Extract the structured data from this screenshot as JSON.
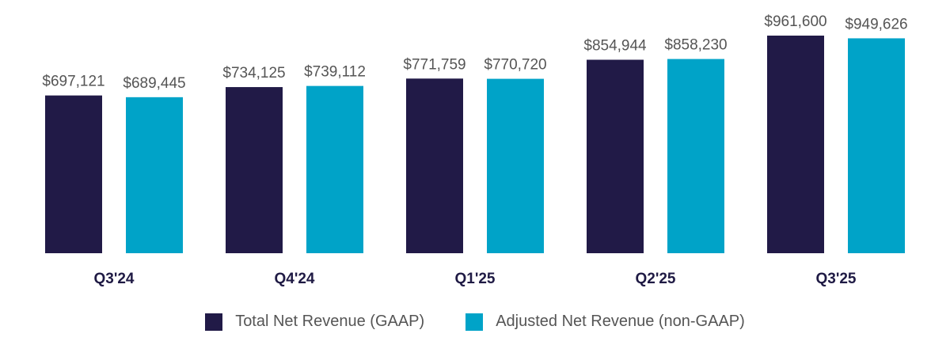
{
  "chart_data": {
    "type": "bar",
    "categories": [
      "Q3'24",
      "Q4'24",
      "Q1'25",
      "Q2'25",
      "Q3'25"
    ],
    "series": [
      {
        "name": "Total Net Revenue (GAAP)",
        "color": "#211a47",
        "values": [
          697121,
          734125,
          771759,
          854944,
          961600
        ],
        "labels": [
          "$697,121",
          "$734,125",
          "$771,759",
          "$854,944",
          "$961,600"
        ]
      },
      {
        "name": "Adjusted Net Revenue (non-GAAP)",
        "color": "#00a3c8",
        "values": [
          689445,
          739112,
          770720,
          858230,
          949626
        ],
        "labels": [
          "$689,445",
          "$739,112",
          "$770,720",
          "$858,230",
          "$949,626"
        ]
      }
    ],
    "title": "",
    "xlabel": "",
    "ylabel": "",
    "ylim": [
      0,
      961600
    ],
    "grid": false,
    "legend_position": "bottom-center"
  }
}
